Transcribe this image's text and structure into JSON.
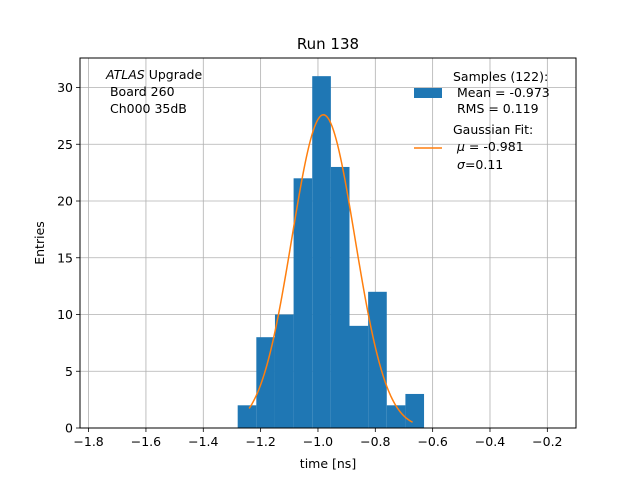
{
  "chart_data": {
    "type": "bar",
    "title": "Run 138",
    "xlabel": "time [ns]",
    "ylabel": "Entries",
    "xlim": [
      -1.83,
      -0.1
    ],
    "ylim": [
      0,
      32.6
    ],
    "grid": true,
    "x_ticks": [
      -1.8,
      -1.6,
      -1.4,
      -1.2,
      -1.0,
      -0.8,
      -0.6,
      -0.4,
      -0.2
    ],
    "x_tick_labels": [
      "−1.8",
      "−1.6",
      "−1.4",
      "−1.2",
      "−1.0",
      "−0.8",
      "−0.6",
      "−0.4",
      "−0.2"
    ],
    "y_ticks": [
      0,
      5,
      10,
      15,
      20,
      25,
      30
    ],
    "y_tick_labels": [
      "0",
      "5",
      "10",
      "15",
      "20",
      "25",
      "30"
    ],
    "bin_edges": [
      -1.28,
      -1.215,
      -1.15,
      -1.085,
      -1.02,
      -0.955,
      -0.89,
      -0.825,
      -0.76,
      -0.695,
      -0.63
    ],
    "values": [
      2,
      8,
      10,
      22,
      31,
      23,
      9,
      12,
      2,
      3
    ],
    "bar_color": "#1f77b4",
    "fit": {
      "name": "Gaussian Fit",
      "mu": -0.981,
      "sigma": 0.11,
      "amplitude": 27.6,
      "x_range": [
        -1.24,
        -0.67
      ],
      "color": "#ff7f0e"
    },
    "annotation": {
      "atlas": "ATLAS",
      "upgrade": " Upgrade",
      "line2": " Board 260",
      "line3": " Ch000 35dB"
    },
    "legend": {
      "placement": "upper right",
      "samples_title": "Samples (122):",
      "samples_mean": " Mean = -0.973",
      "samples_rms": " RMS = 0.119",
      "fit_title": "Gaussian Fit:",
      "fit_mu_symbol": "μ",
      "fit_mu_value": " = -0.981",
      "fit_sigma_symbol": "σ",
      "fit_sigma_value": "=0.11"
    }
  }
}
